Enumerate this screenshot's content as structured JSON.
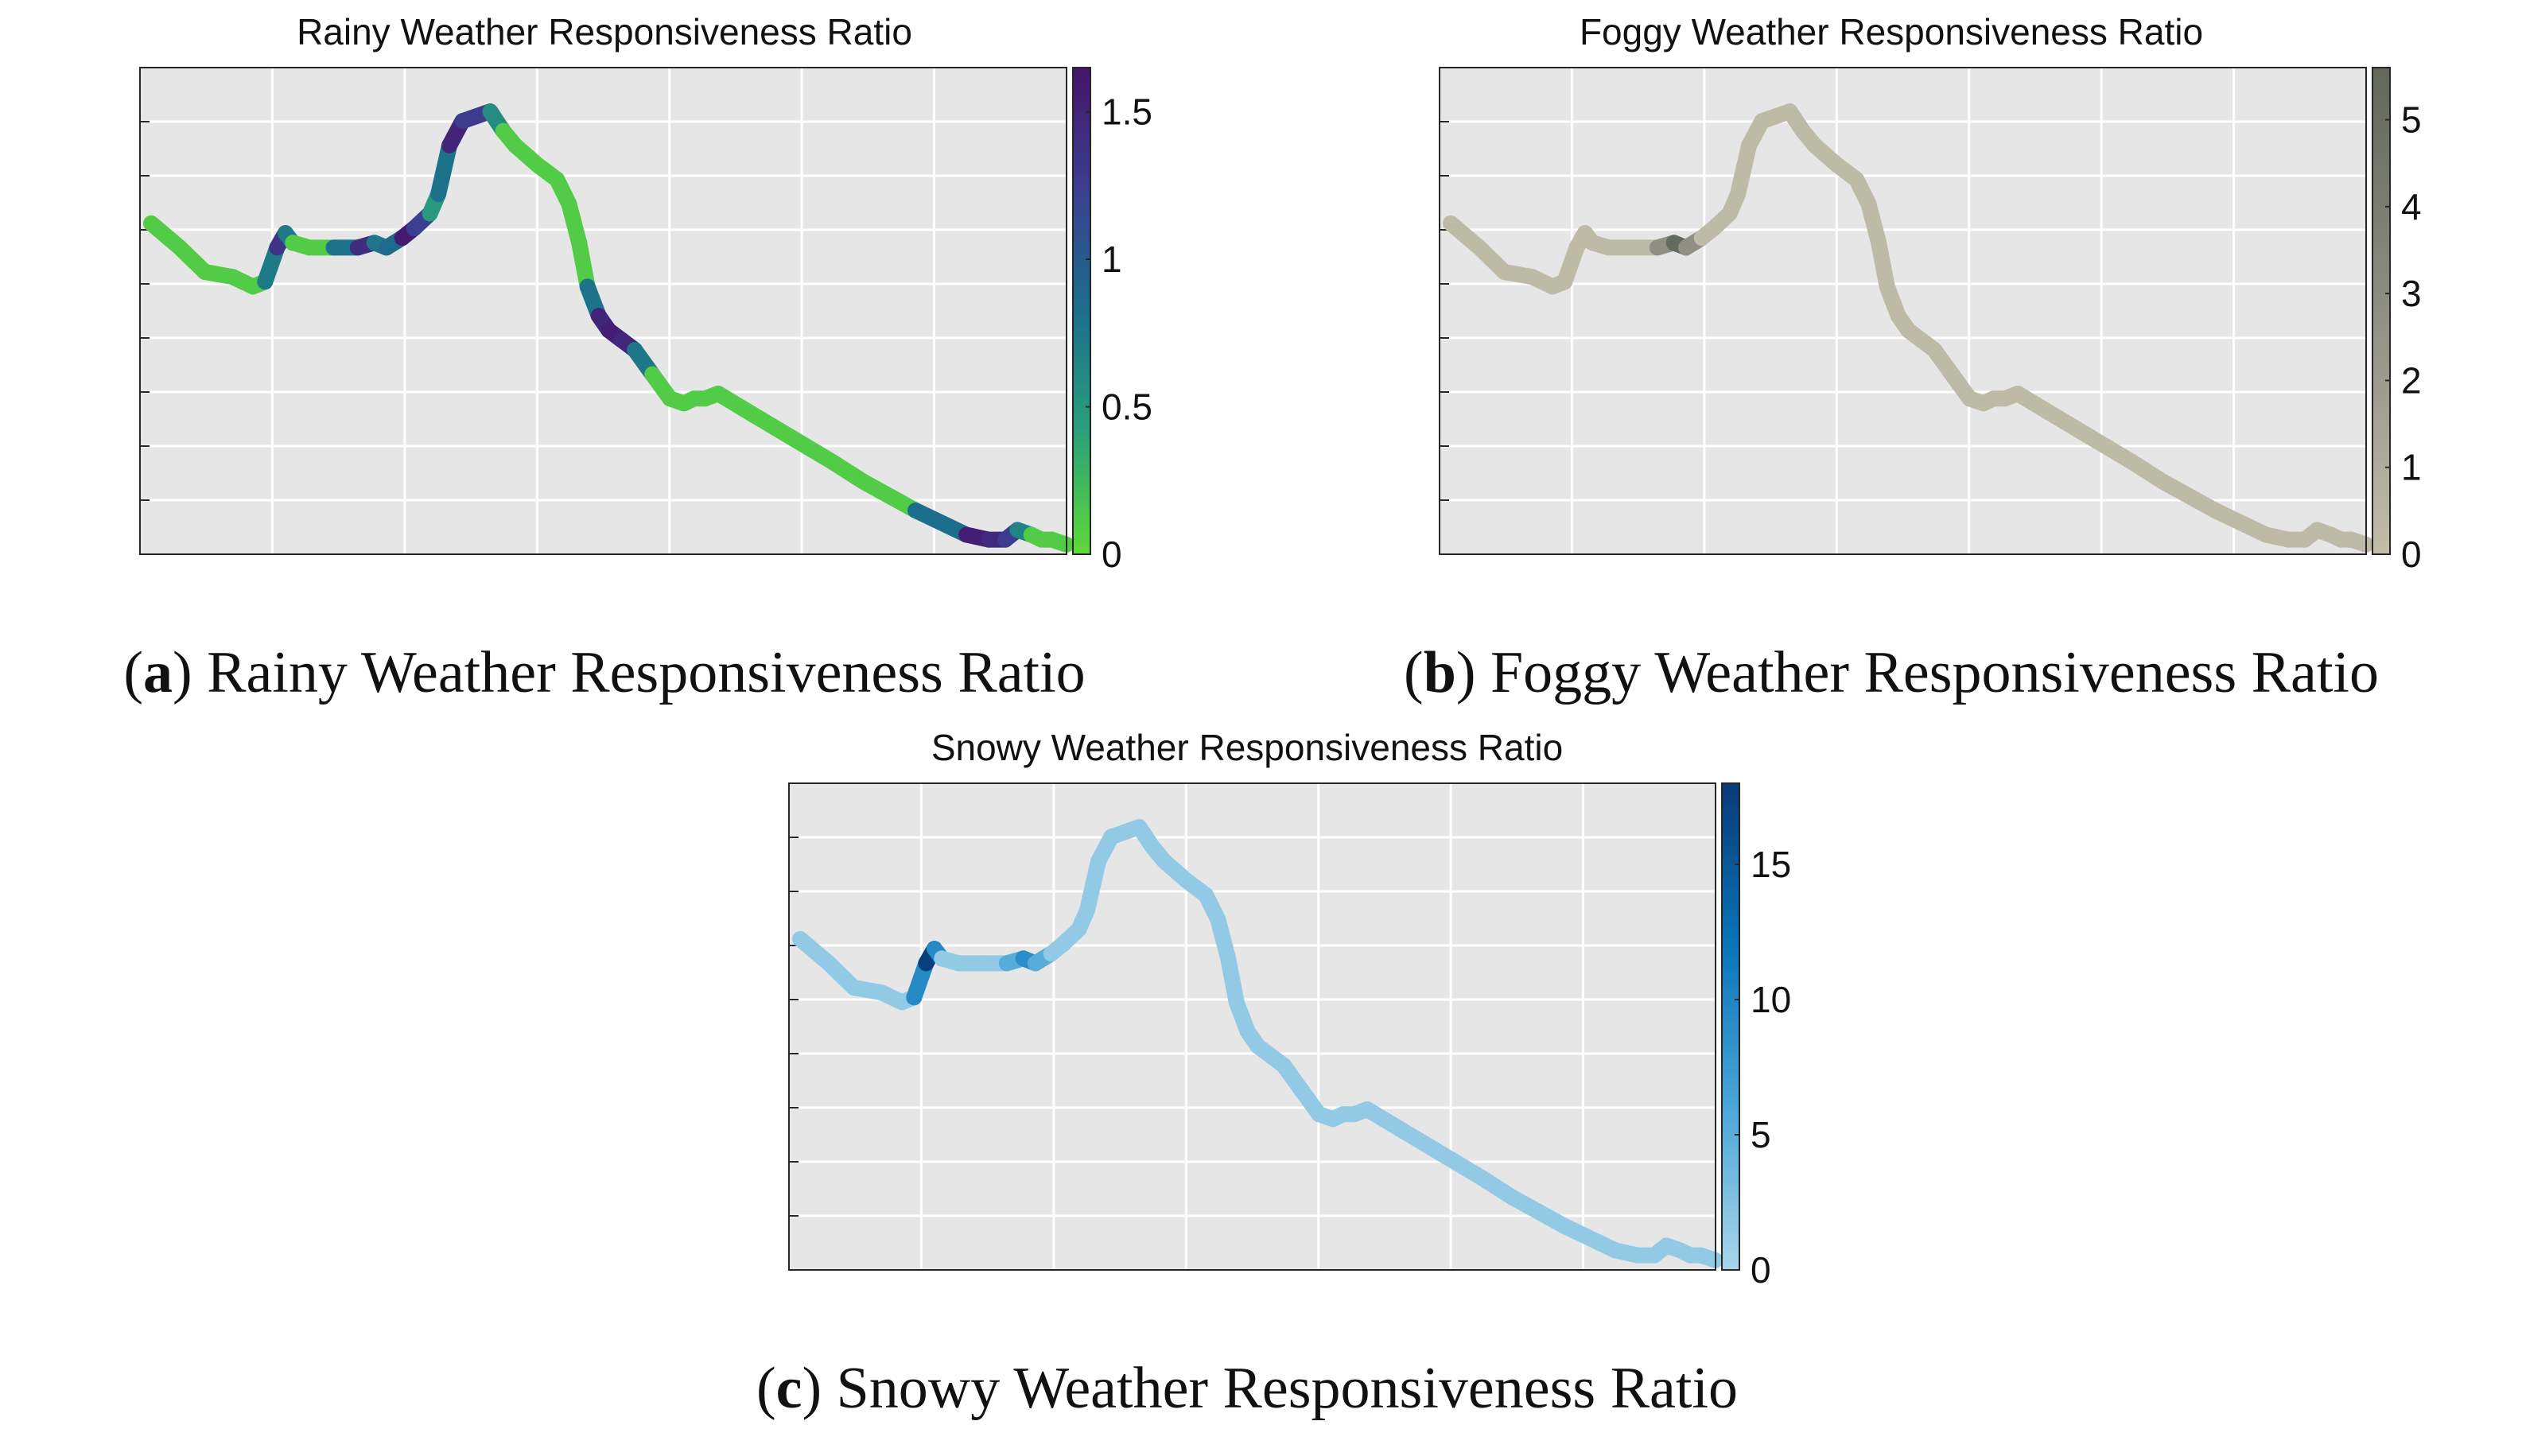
{
  "chart_data": [
    {
      "type": "line",
      "id": "a",
      "title": "Rainy Weather Responsiveness Ratio",
      "caption_letter": "a",
      "caption_text": "Rainy Weather Responsiveness Ratio",
      "xlabel": "",
      "ylabel": "",
      "xlim": [
        0,
        100
      ],
      "ylim": [
        0,
        100
      ],
      "grid": true,
      "colorbar": {
        "range": [
          0,
          1.65
        ],
        "ticks": [
          "0",
          "0.5",
          "1",
          "1.5"
        ],
        "tick_values": [
          0,
          0.5,
          1,
          1.5
        ],
        "colors": [
          "#5fd937",
          "#2ba07a",
          "#1b6e8c",
          "#3b3f90",
          "#46146b"
        ]
      },
      "x": [
        1.2,
        4.3,
        7.0,
        10.0,
        12.2,
        13.5,
        14.8,
        15.7,
        16.5,
        18.3,
        20.9,
        23.5,
        25.3,
        26.6,
        28.3,
        29.6,
        31.3,
        32.2,
        33.4,
        34.8,
        37.8,
        39.2,
        40.5,
        42.9,
        45.0,
        46.3,
        47.4,
        48.3,
        49.5,
        50.6,
        52.0,
        53.4,
        55.3,
        57.2,
        58.7,
        59.8,
        61.0,
        62.4,
        65.9,
        70.3,
        74.7,
        78.0,
        83.7,
        89.2,
        91.6,
        93.4,
        94.7,
        96.2,
        97.3,
        98.4,
        100.0
      ],
      "y": [
        68,
        63,
        58,
        57,
        55,
        56,
        63,
        66,
        64,
        63,
        63,
        63,
        64,
        63,
        65,
        67,
        70,
        74,
        84,
        89,
        91,
        87,
        84,
        80,
        77,
        72,
        64,
        55,
        49,
        46,
        44,
        42,
        37,
        32,
        31,
        32,
        32,
        33,
        29,
        24,
        19,
        15,
        9,
        4,
        3,
        3,
        5,
        4,
        3,
        3,
        2
      ],
      "values": [
        0.1,
        0.1,
        0.1,
        0.1,
        0.1,
        0.1,
        1.35,
        1.35,
        0.1,
        0.1,
        0.1,
        1.45,
        1.4,
        0.1,
        1.6,
        1.6,
        0.85,
        0.1,
        1.5,
        1.5,
        1.05,
        0.1,
        0.1,
        0.1,
        0.1,
        0.1,
        0.1,
        0.1,
        1.45,
        1.55,
        1.55,
        1.4,
        0.1,
        0.1,
        0.1,
        0.1,
        0.1,
        0.1,
        0.1,
        0.1,
        0.1,
        0.1,
        0.1,
        1.55,
        1.55,
        1.35,
        1.2,
        0.1,
        0.1,
        0.1,
        0.1
      ]
    },
    {
      "type": "line",
      "id": "b",
      "title": "Foggy Weather Responsiveness Ratio",
      "caption_letter": "b",
      "caption_text": "Foggy Weather Responsiveness Ratio",
      "xlabel": "",
      "ylabel": "",
      "xlim": [
        0,
        100
      ],
      "ylim": [
        0,
        100
      ],
      "grid": true,
      "colorbar": {
        "range": [
          0,
          5.6
        ],
        "ticks": [
          "0",
          "1",
          "2",
          "3",
          "4",
          "5"
        ],
        "tick_values": [
          0,
          1,
          2,
          3,
          4,
          5
        ],
        "colors": [
          "#c1bea9",
          "#9e9d8f",
          "#7f8176",
          "#616759"
        ]
      },
      "x": [
        1.2,
        4.3,
        7.0,
        10.0,
        12.2,
        13.5,
        14.8,
        15.7,
        16.5,
        18.3,
        20.9,
        23.5,
        25.3,
        26.6,
        28.3,
        29.6,
        31.3,
        32.2,
        33.4,
        34.8,
        37.8,
        39.2,
        40.5,
        42.9,
        45.0,
        46.3,
        47.4,
        48.3,
        49.5,
        50.6,
        52.0,
        53.4,
        55.3,
        57.2,
        58.7,
        59.8,
        61.0,
        62.4,
        65.9,
        70.3,
        74.7,
        78.0,
        83.7,
        89.2,
        91.6,
        93.4,
        94.7,
        96.2,
        97.3,
        98.4,
        100.0
      ],
      "y": [
        68,
        63,
        58,
        57,
        55,
        56,
        63,
        66,
        64,
        63,
        63,
        63,
        64,
        63,
        65,
        67,
        70,
        74,
        84,
        89,
        91,
        87,
        84,
        80,
        77,
        72,
        64,
        55,
        49,
        46,
        44,
        42,
        37,
        32,
        31,
        32,
        32,
        33,
        29,
        24,
        19,
        15,
        9,
        4,
        3,
        3,
        5,
        4,
        3,
        3,
        2
      ],
      "values": [
        0.2,
        0.2,
        0.2,
        0.2,
        0.2,
        0.2,
        0.2,
        0.2,
        0.2,
        0.2,
        0.2,
        0.2,
        5.4,
        5.4,
        0.2,
        0.2,
        0.2,
        0.2,
        0.2,
        0.2,
        0.2,
        0.2,
        0.2,
        0.2,
        0.2,
        0.2,
        0.2,
        0.2,
        0.2,
        0.2,
        0.2,
        0.2,
        0.2,
        0.2,
        0.2,
        0.2,
        0.2,
        0.2,
        0.2,
        0.2,
        0.2,
        0.2,
        0.2,
        0.2,
        0.2,
        0.2,
        0.2,
        0.2,
        0.2,
        0.2,
        0.2
      ]
    },
    {
      "type": "line",
      "id": "c",
      "title": "Snowy Weather Responsiveness Ratio",
      "caption_letter": "c",
      "caption_text": "Snowy Weather Responsiveness Ratio",
      "xlabel": "",
      "ylabel": "",
      "xlim": [
        0,
        100
      ],
      "ylim": [
        0,
        100
      ],
      "grid": true,
      "colorbar": {
        "range": [
          0,
          18
        ],
        "ticks": [
          "0",
          "5",
          "10",
          "15"
        ],
        "tick_values": [
          0,
          5,
          10,
          15
        ],
        "colors": [
          "#a9d6ea",
          "#4ba6d8",
          "#0a74b8",
          "#083a78"
        ]
      },
      "x": [
        1.2,
        4.3,
        7.0,
        10.0,
        12.2,
        13.5,
        14.8,
        15.7,
        16.5,
        18.3,
        20.9,
        23.5,
        25.3,
        26.6,
        28.3,
        29.6,
        31.3,
        32.2,
        33.4,
        34.8,
        37.8,
        39.2,
        40.5,
        42.9,
        45.0,
        46.3,
        47.4,
        48.3,
        49.5,
        50.6,
        52.0,
        53.4,
        55.3,
        57.2,
        58.7,
        59.8,
        61.0,
        62.4,
        65.9,
        70.3,
        74.7,
        78.0,
        83.7,
        89.2,
        91.6,
        93.4,
        94.7,
        96.2,
        97.3,
        98.4,
        100.0
      ],
      "y": [
        68,
        63,
        58,
        57,
        55,
        56,
        63,
        66,
        64,
        63,
        63,
        63,
        64,
        63,
        65,
        67,
        70,
        74,
        84,
        89,
        91,
        87,
        84,
        80,
        77,
        72,
        64,
        55,
        49,
        46,
        44,
        42,
        37,
        32,
        31,
        32,
        32,
        33,
        29,
        24,
        19,
        15,
        9,
        4,
        3,
        3,
        5,
        4,
        3,
        3,
        2
      ],
      "values": [
        1.5,
        1.5,
        1.5,
        1.5,
        1.5,
        1.5,
        17.5,
        17.5,
        1.5,
        1.5,
        1.5,
        1.5,
        9.0,
        9.0,
        1.5,
        1.5,
        1.5,
        1.5,
        1.5,
        1.5,
        1.5,
        1.5,
        1.5,
        1.5,
        1.5,
        1.5,
        1.5,
        1.5,
        1.5,
        1.5,
        1.5,
        1.5,
        1.5,
        1.5,
        1.5,
        1.5,
        1.5,
        1.5,
        1.5,
        1.5,
        1.5,
        1.5,
        1.5,
        1.5,
        1.5,
        1.5,
        1.5,
        1.5,
        1.5,
        1.5,
        1.5
      ]
    }
  ]
}
